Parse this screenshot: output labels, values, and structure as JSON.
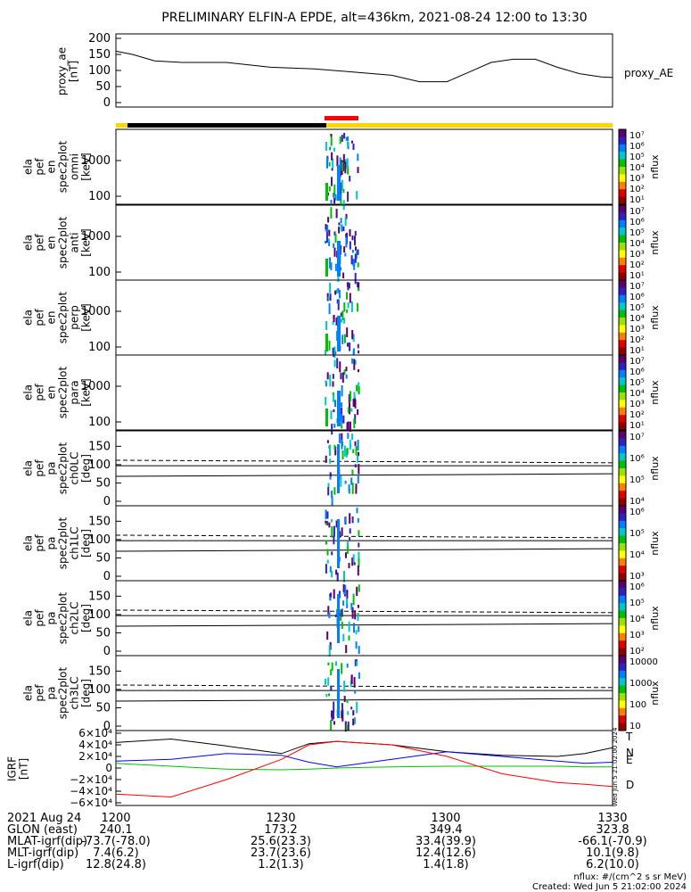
{
  "title": "PRELIMINARY ELFIN-A EPDE, alt=436km, 2021-08-24 12:00 to 13:30",
  "colors": {
    "cbar": [
      "#5a0070",
      "#3020c0",
      "#0080ff",
      "#00c8c8",
      "#00c000",
      "#a0e000",
      "#ffff00",
      "#ff8000",
      "#e00000",
      "#900000"
    ],
    "status_black": "#000000",
    "status_yellow": "#ffd700",
    "status_red": "#ff0000",
    "grf_T": "#000000",
    "grf_N": "#0000ff",
    "grf_E": "#00c000",
    "grf_D": "#ff0000"
  },
  "proxy_panel": {
    "ylabel_lines": [
      "proxy_ae",
      "[nT]"
    ],
    "yticks": [
      "200",
      "150",
      "100",
      "50",
      "0"
    ],
    "series_label": "proxy_AE"
  },
  "spec_panels": [
    {
      "ylabel_lines": [
        "ela",
        "pef",
        "en",
        "spec2plot",
        "omni",
        "[keV]"
      ],
      "yticks": [
        "1000",
        "100"
      ],
      "cbar_label": "nflux",
      "cbar_ticks": [
        "10⁷",
        "10⁶",
        "10⁵",
        "10⁴",
        "10³",
        "10²",
        "10¹"
      ]
    },
    {
      "ylabel_lines": [
        "ela",
        "pef",
        "en",
        "spec2plot",
        "anti",
        "[keV]"
      ],
      "yticks": [
        "1000",
        "100"
      ],
      "cbar_label": "nflux",
      "cbar_ticks": [
        "10⁷",
        "10⁶",
        "10⁵",
        "10⁴",
        "10³",
        "10²",
        "10¹"
      ]
    },
    {
      "ylabel_lines": [
        "ela",
        "pef",
        "en",
        "spec2plot",
        "perp",
        "[keV]"
      ],
      "yticks": [
        "1000",
        "100"
      ],
      "cbar_label": "nflux",
      "cbar_ticks": [
        "10⁷",
        "10⁶",
        "10⁵",
        "10⁴",
        "10³",
        "10²",
        "10¹"
      ]
    },
    {
      "ylabel_lines": [
        "ela",
        "pef",
        "en",
        "spec2plot",
        "para",
        "[keV]"
      ],
      "yticks": [
        "1000",
        "100"
      ],
      "cbar_label": "nflux",
      "cbar_ticks": [
        "10⁷",
        "10⁶",
        "10⁵",
        "10⁴",
        "10³",
        "10²",
        "10¹"
      ]
    }
  ],
  "pa_panels": [
    {
      "ylabel_lines": [
        "ela",
        "pef",
        "pa",
        "spec2plot",
        "ch0LC",
        "[deg]"
      ],
      "yticks": [
        "150",
        "100",
        "50",
        "0"
      ],
      "cbar_label": "nflux",
      "cbar_ticks": [
        "10⁷",
        "10⁶",
        "10⁵",
        "10⁴"
      ]
    },
    {
      "ylabel_lines": [
        "ela",
        "pef",
        "pa",
        "spec2plot",
        "ch1LC",
        "[deg]"
      ],
      "yticks": [
        "150",
        "100",
        "50",
        "0"
      ],
      "cbar_label": "nflux",
      "cbar_ticks": [
        "10⁶",
        "10⁵",
        "10⁴",
        "10³"
      ]
    },
    {
      "ylabel_lines": [
        "ela",
        "pef",
        "pa",
        "spec2plot",
        "ch2LC",
        "[deg]"
      ],
      "yticks": [
        "150",
        "100",
        "50",
        "0"
      ],
      "cbar_label": "nflux",
      "cbar_ticks": [
        "10⁶",
        "10⁵",
        "10⁴",
        "10³",
        "10²"
      ]
    },
    {
      "ylabel_lines": [
        "ela",
        "pef",
        "pa",
        "spec2plot",
        "ch3LC",
        "[deg]"
      ],
      "yticks": [
        "150",
        "100",
        "50",
        "0"
      ],
      "cbar_label": "nflux",
      "cbar_ticks": [
        "10000",
        "1000",
        "100",
        "10"
      ]
    }
  ],
  "grf_panel": {
    "ylabel_lines": [
      "IGRF",
      "[nT]"
    ],
    "yticks": [
      "6×10⁴",
      "4×10⁴",
      "2×10⁴",
      "0",
      "−2×10⁴",
      "−4×10⁴",
      "−6×10⁴"
    ],
    "legend": [
      "T",
      "N",
      "E",
      "D"
    ],
    "created_side": "Wed Jun  5 21:02:00 2024"
  },
  "bottom_table": {
    "row_labels": [
      "2021 Aug 24",
      "GLON (east)",
      "MLAT-igrf(dip)",
      "MLT-igrf(dip)",
      "L-igrf(dip)"
    ],
    "columns": [
      [
        "1200",
        "240.1",
        "-73.7(-78.0)",
        "7.4(6.2)",
        "12.8(24.8)"
      ],
      [
        "1230",
        "173.2",
        "25.6(23.3)",
        "23.7(23.6)",
        "1.2(1.3)"
      ],
      [
        "1300",
        "349.4",
        "33.4(39.9)",
        "12.4(12.6)",
        "1.4(1.8)"
      ],
      [
        "1330",
        "323.8",
        "-66.1(-70.9)",
        "10.1(9.8)",
        "6.2(10.0)"
      ]
    ]
  },
  "footer": {
    "units": "nflux: #/(cm^2 s sr MeV)",
    "created": "Created: Wed Jun  5 21:02:00 2024"
  },
  "chart_data": {
    "type": "line",
    "title": "PRELIMINARY ELFIN-A EPDE, alt=436km, 2021-08-24 12:00 to 13:30",
    "x_range": [
      "12:00",
      "13:30"
    ],
    "xticks": [
      "1200",
      "1230",
      "1300",
      "1330"
    ],
    "proxy_ae": {
      "name": "proxy_AE",
      "ylim": [
        0,
        200
      ],
      "x_min": [
        0,
        3,
        7,
        12,
        20,
        28,
        36,
        43,
        50,
        55,
        60,
        64,
        68,
        72,
        76,
        80,
        84,
        88,
        90
      ],
      "values": [
        160,
        150,
        130,
        125,
        125,
        110,
        105,
        95,
        85,
        65,
        65,
        95,
        125,
        135,
        135,
        110,
        90,
        80,
        78
      ]
    },
    "igrf": {
      "ylim": [
        -60000,
        60000
      ],
      "x_min": [
        0,
        10,
        20,
        30,
        35,
        40,
        50,
        60,
        70,
        80,
        85,
        90
      ],
      "series": [
        {
          "name": "T",
          "values": [
            44000,
            50000,
            38000,
            25000,
            42000,
            46000,
            40000,
            28000,
            22000,
            20000,
            25000,
            35000
          ]
        },
        {
          "name": "N",
          "values": [
            12000,
            15000,
            25000,
            22000,
            10000,
            2000,
            15000,
            28000,
            20000,
            12000,
            8000,
            10000
          ]
        },
        {
          "name": "E",
          "values": [
            8000,
            3000,
            -2000,
            -3000,
            -2000,
            0,
            2000,
            3000,
            3000,
            3000,
            2000,
            2000
          ]
        },
        {
          "name": "D",
          "values": [
            -45000,
            -50000,
            -20000,
            15000,
            40000,
            46000,
            40000,
            20000,
            -10000,
            -25000,
            -28000,
            -32000
          ]
        }
      ]
    }
  }
}
